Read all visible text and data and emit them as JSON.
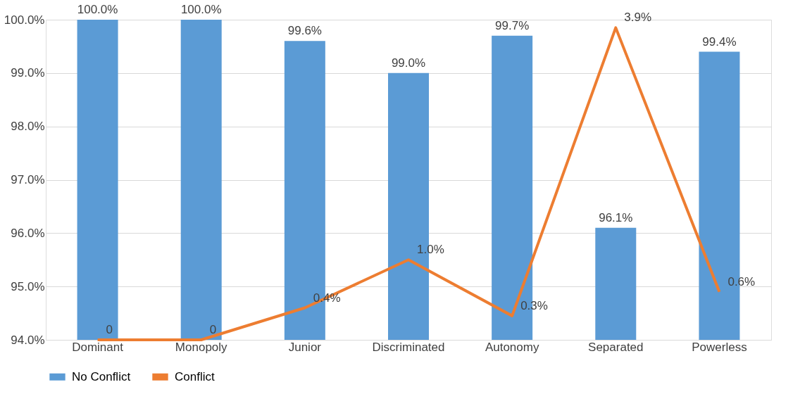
{
  "chart_data": {
    "type": "bar",
    "categories": [
      "Dominant",
      "Monopoly",
      "Junior",
      "Discriminated",
      "Autonomy",
      "Separated",
      "Powerless"
    ],
    "series": [
      {
        "name": "No Conflict",
        "color": "#5b9bd5",
        "values": [
          100.0,
          100.0,
          99.6,
          99.0,
          99.7,
          96.1,
          99.4
        ],
        "value_labels": [
          "100.0%",
          "100.0%",
          "99.6%",
          "99.0%",
          "99.7%",
          "96.1%",
          "99.4%"
        ]
      },
      {
        "name": "Conflict",
        "type": "line",
        "axis": "y2",
        "color": "#ed7d31",
        "values": [
          0,
          0,
          0.4,
          1.0,
          0.3,
          3.9,
          0.6
        ],
        "value_labels": [
          "0",
          "0",
          "0.4%",
          "1.0%",
          "0.3%",
          "3.9%",
          "0.6%"
        ]
      }
    ],
    "ylim": [
      94,
      100
    ],
    "yticks": [
      {
        "value": 94,
        "label": "94.0%"
      },
      {
        "value": 95,
        "label": "95.0%"
      },
      {
        "value": 96,
        "label": "96.0%"
      },
      {
        "value": 97,
        "label": "97.0%"
      },
      {
        "value": 98,
        "label": "98.0%"
      },
      {
        "value": 99,
        "label": "99.0%"
      },
      {
        "value": 100,
        "label": "100.0%"
      }
    ],
    "y2lim": [
      0,
      4
    ],
    "grid": "y",
    "legend": "bottom",
    "marker": "none",
    "line_style": "solid"
  }
}
